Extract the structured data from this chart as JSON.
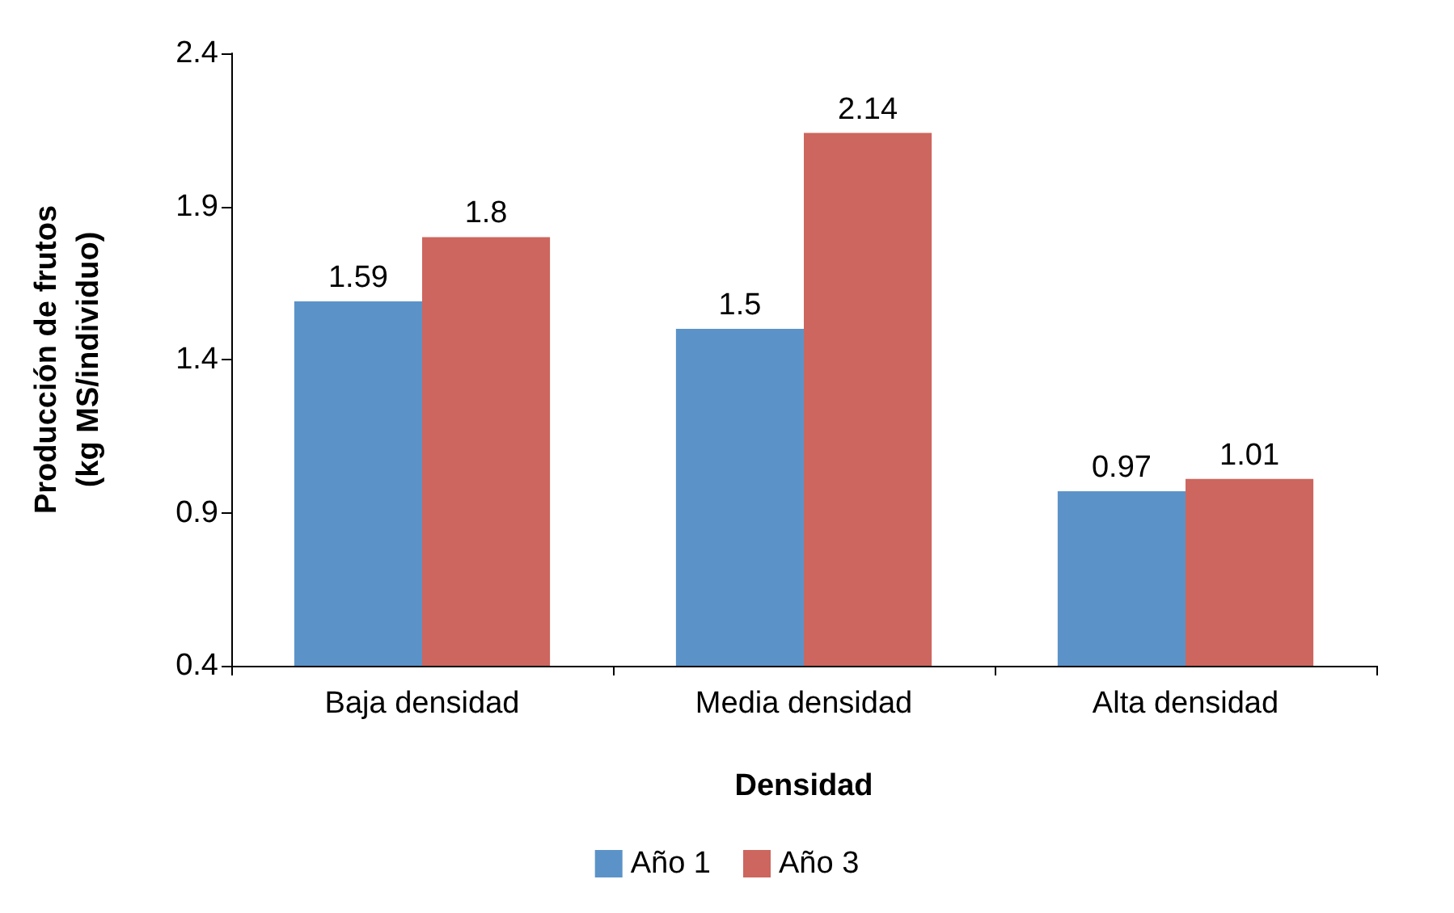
{
  "chart_data": {
    "type": "bar",
    "categories": [
      "Baja densidad",
      "Media densidad",
      "Alta densidad"
    ],
    "series": [
      {
        "name": "Año 1",
        "color": "#5b93c9",
        "values": [
          1.59,
          1.5,
          0.97
        ]
      },
      {
        "name": "Año 3",
        "color": "#cd665e",
        "values": [
          1.8,
          2.14,
          1.01
        ]
      }
    ],
    "xlabel": "Densidad",
    "ylabel": "Producción de frutos\n(kg MS/individuo)",
    "ylim": [
      0.4,
      2.4
    ],
    "yticks": [
      0.4,
      0.9,
      1.4,
      1.9,
      2.4
    ],
    "data_labels": true,
    "grid": false,
    "legend": "bottom"
  }
}
